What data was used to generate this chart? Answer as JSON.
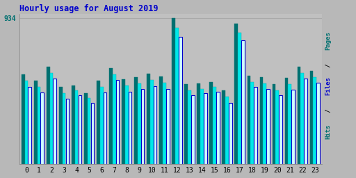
{
  "title": "Hourly usage for August 2019",
  "hours": [
    0,
    1,
    2,
    3,
    4,
    5,
    6,
    7,
    8,
    9,
    10,
    11,
    12,
    13,
    14,
    15,
    16,
    17,
    18,
    19,
    20,
    21,
    22,
    23
  ],
  "pages": [
    570,
    530,
    620,
    490,
    500,
    450,
    530,
    610,
    540,
    555,
    575,
    560,
    930,
    510,
    515,
    525,
    470,
    895,
    565,
    555,
    510,
    550,
    620,
    595
  ],
  "files": [
    530,
    490,
    580,
    450,
    470,
    420,
    490,
    570,
    500,
    515,
    535,
    520,
    870,
    470,
    480,
    490,
    430,
    840,
    525,
    515,
    470,
    510,
    580,
    555
  ],
  "hits": [
    490,
    455,
    545,
    415,
    440,
    390,
    455,
    535,
    460,
    480,
    495,
    480,
    810,
    440,
    450,
    460,
    390,
    790,
    490,
    480,
    440,
    475,
    545,
    520
  ],
  "max_val": 934,
  "ylim_max": 960,
  "bg_color": "#b8b8b8",
  "plot_bg_color": "#c0c0c0",
  "bar_color_pages": "#007070",
  "bar_color_files": "#00e8e8",
  "bar_color_hits_fill": "#d0ffff",
  "bar_color_hits_edge": "#0000cc",
  "title_color": "#0000cc",
  "ytick_color": "#007070",
  "grid_color": "#a8a8a8",
  "grid_linewidth": 0.8,
  "label_pages_color": "#007070",
  "label_files_color": "#0000cc",
  "label_hits_color": "#007070",
  "label_slash_color": "#000000"
}
